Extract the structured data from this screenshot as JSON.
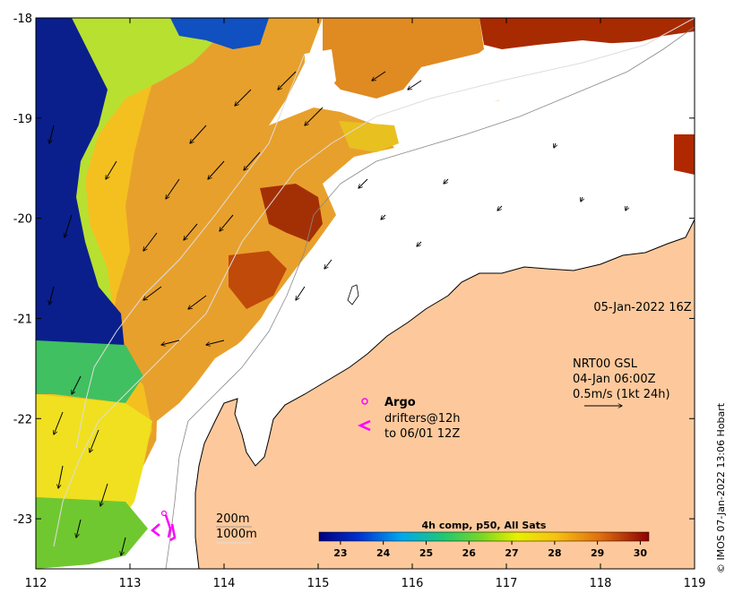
{
  "map": {
    "x_axis": {
      "range": [
        112,
        119
      ],
      "ticks": [
        "112",
        "113",
        "114",
        "115",
        "116",
        "117",
        "118",
        "119"
      ]
    },
    "y_axis": {
      "range": [
        -23.5,
        -18
      ],
      "ticks": [
        "-18",
        "-19",
        "-20",
        "-21",
        "-22",
        "-23"
      ]
    },
    "date_label": "05-Jan-2022 16Z",
    "current_legend": {
      "line1": "NRT00 GSL",
      "line2": "04-Jan 06:00Z",
      "line3": "0.5m/s (1kt 24h)"
    },
    "argo_legend": {
      "title": "Argo",
      "drifters_line1": "drifters@12h",
      "drifters_line2": "to 06/01 12Z"
    },
    "isobath_legend": {
      "line1": "200m",
      "line2": "1000m"
    },
    "colorbar": {
      "title": "4h comp, p50, All Sats",
      "range": [
        22.5,
        30.2
      ],
      "ticks": [
        "23",
        "24",
        "25",
        "26",
        "27",
        "28",
        "29",
        "30"
      ]
    },
    "copyright": "© IMOS 07-Jan-2022 13:06 Hobart",
    "colors": {
      "land": "#fdc99c",
      "cloud": "#ffffff",
      "argo": "#ff00ff",
      "sst_warm": "#e89b2a",
      "sst_hot": "#a32a07",
      "sst_cold": "#0a1f8c",
      "sst_mid": "#d8e83b"
    }
  }
}
